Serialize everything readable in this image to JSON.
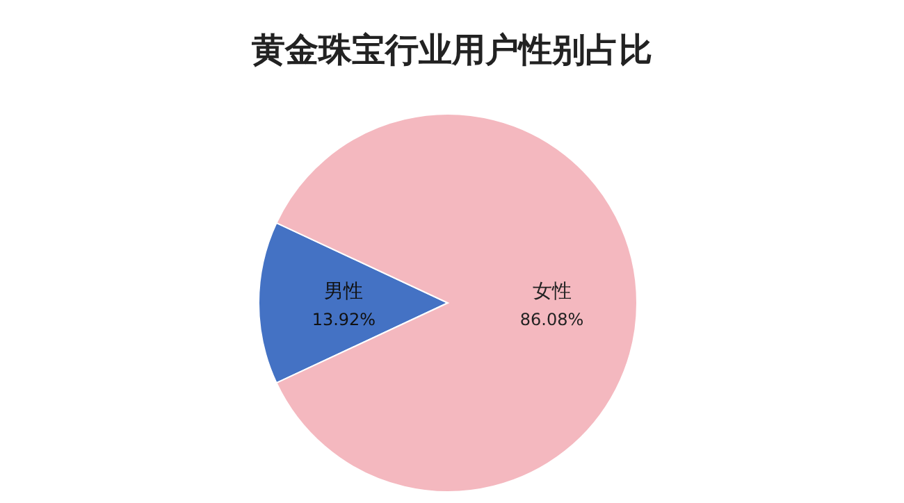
{
  "chart_data": {
    "type": "pie",
    "title": "黄金珠宝行业用户性别占比",
    "categories": [
      "男性",
      "女性"
    ],
    "values": [
      13.92,
      86.08
    ],
    "value_labels": [
      "13.92%",
      "86.08%"
    ],
    "colors": [
      "#4472c4",
      "#f4b8bf"
    ]
  }
}
